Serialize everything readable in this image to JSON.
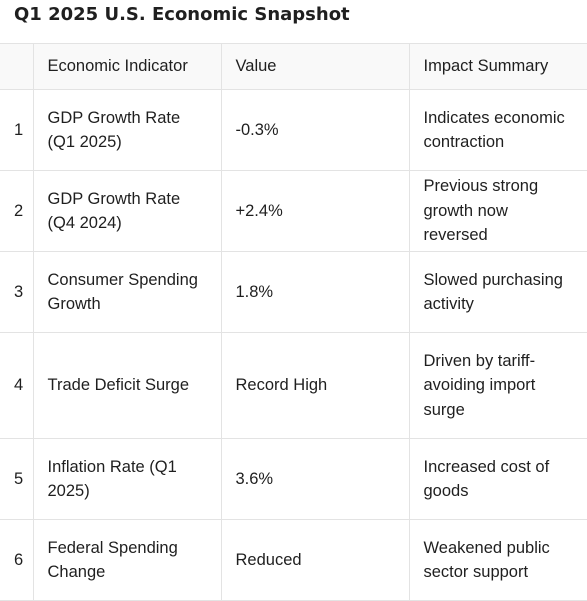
{
  "title": "Q1 2025 U.S. Economic Snapshot",
  "table": {
    "headers": {
      "index": "",
      "indicator": "Economic Indicator",
      "value": "Value",
      "impact": "Impact Summary"
    },
    "rows": [
      {
        "index": "1",
        "indicator": "GDP Growth Rate (Q1 2025)",
        "value": "-0.3%",
        "impact": "Indicates economic contraction"
      },
      {
        "index": "2",
        "indicator": "GDP Growth Rate (Q4 2024)",
        "value": "+2.4%",
        "impact": "Previous strong growth now reversed"
      },
      {
        "index": "3",
        "indicator": "Consumer Spending Growth",
        "value": "1.8%",
        "impact": "Slowed purchasing activity"
      },
      {
        "index": "4",
        "indicator": "Trade Deficit Surge",
        "value": "Record High",
        "impact": "Driven by tariff-avoiding import surge"
      },
      {
        "index": "5",
        "indicator": "Inflation Rate (Q1 2025)",
        "value": "3.6%",
        "impact": "Increased cost of goods"
      },
      {
        "index": "6",
        "indicator": "Federal Spending Change",
        "value": "Reduced",
        "impact": "Weakened public sector support"
      }
    ]
  }
}
